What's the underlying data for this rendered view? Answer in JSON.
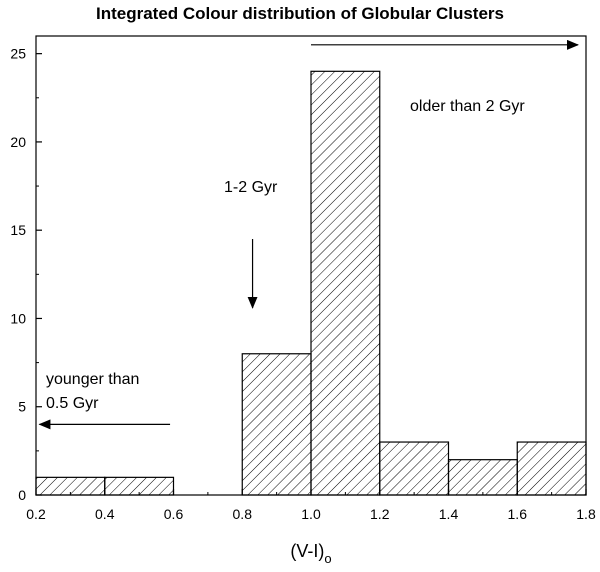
{
  "chart_data": {
    "type": "bar",
    "title": "Integrated Colour distribution of Globular Clusters",
    "xlabel": "(V-I)",
    "xlabel_subscript": "o",
    "ylabel": "",
    "xlim": [
      0.2,
      1.8
    ],
    "ylim": [
      0,
      26
    ],
    "x_ticks": [
      "0.2",
      "0.4",
      "0.6",
      "0.8",
      "1.0",
      "1.2",
      "1.4",
      "1.6",
      "1.8"
    ],
    "y_ticks": [
      "0",
      "5",
      "10",
      "15",
      "20",
      "25"
    ],
    "bins": [
      {
        "x0": 0.2,
        "x1": 0.4,
        "value": 1
      },
      {
        "x0": 0.4,
        "x1": 0.6,
        "value": 1
      },
      {
        "x0": 0.6,
        "x1": 0.8,
        "value": 0
      },
      {
        "x0": 0.8,
        "x1": 1.0,
        "value": 8
      },
      {
        "x0": 1.0,
        "x1": 1.2,
        "value": 24
      },
      {
        "x0": 1.2,
        "x1": 1.4,
        "value": 3
      },
      {
        "x0": 1.4,
        "x1": 1.6,
        "value": 2
      },
      {
        "x0": 1.6,
        "x1": 1.8,
        "value": 3
      }
    ],
    "fill_pattern": "diagonal hatch",
    "grid": false,
    "annotations": [
      {
        "text": "older than 2 Gyr",
        "arrow": {
          "x_from": 1.0,
          "x_to": 1.8,
          "y": 25.5
        }
      },
      {
        "text": "1-2 Gyr",
        "arrow": {
          "x": 0.83,
          "y_from": 14.5,
          "y_to": 10.6
        }
      },
      {
        "text_lines": [
          "younger than",
          "0.5 Gyr"
        ],
        "arrow": {
          "x_from": 0.59,
          "x_to": 0.21,
          "y": 4.0
        }
      }
    ]
  }
}
